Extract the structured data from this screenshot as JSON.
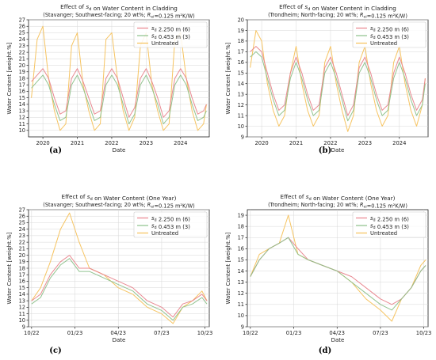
{
  "captions": [
    "(a)",
    "(b)",
    "(c)",
    "(d)"
  ],
  "colors": {
    "sd_2250": "#e8848c",
    "sd_0453": "#8cc08a",
    "untreated": "#f6c15a",
    "grid": "#d7d7d7"
  },
  "chart_data": [
    {
      "id": "a",
      "type": "line",
      "title": "Effect of s_d on Water Content in Cladding",
      "subtitle": "(Stavanger; Southwest-facing; 20 wt%; R_ei=0.125 m²K/W)",
      "xlabel": "Date",
      "ylabel": "Water Content [weight.%]",
      "x_ticks": [
        "2020",
        "2021",
        "2022",
        "2023",
        "2024"
      ],
      "xlim": [
        "2019-08",
        "2024-11"
      ],
      "ylim": [
        9,
        27
      ],
      "y_ticks": [
        10,
        11,
        12,
        13,
        14,
        15,
        16,
        17,
        18,
        19,
        20,
        21,
        22,
        23,
        24,
        25,
        26,
        27
      ],
      "grid": true,
      "legend_position": "top-right",
      "series": [
        {
          "name": "s_d 2.250 m (6)",
          "x": [
            "2019-09",
            "2019-11",
            "2020-01",
            "2020-03",
            "2020-05",
            "2020-07",
            "2020-09",
            "2020-11",
            "2021-01",
            "2021-03",
            "2021-05",
            "2021-07",
            "2021-09",
            "2021-11",
            "2022-01",
            "2022-03",
            "2022-05",
            "2022-07",
            "2022-09",
            "2022-11",
            "2023-01",
            "2023-03",
            "2023-05",
            "2023-07",
            "2023-09",
            "2023-11",
            "2024-01",
            "2024-03",
            "2024-05",
            "2024-07",
            "2024-09",
            "2024-10"
          ],
          "values": [
            17.5,
            18.5,
            19.5,
            18,
            15,
            12.5,
            13,
            18,
            19.5,
            17.5,
            15,
            12.5,
            13,
            18,
            19.5,
            18,
            15,
            12,
            13.5,
            18,
            19.5,
            17.5,
            15,
            12,
            13,
            18,
            19.5,
            18,
            15,
            12.5,
            13,
            14
          ]
        },
        {
          "name": "s_d 0.453 m (3)",
          "x": [
            "2019-09",
            "2019-11",
            "2020-01",
            "2020-03",
            "2020-05",
            "2020-07",
            "2020-09",
            "2020-11",
            "2021-01",
            "2021-03",
            "2021-05",
            "2021-07",
            "2021-09",
            "2021-11",
            "2022-01",
            "2022-03",
            "2022-05",
            "2022-07",
            "2022-09",
            "2022-11",
            "2023-01",
            "2023-03",
            "2023-05",
            "2023-07",
            "2023-09",
            "2023-11",
            "2024-01",
            "2024-03",
            "2024-05",
            "2024-07",
            "2024-09",
            "2024-10"
          ],
          "values": [
            16.5,
            17.5,
            18.5,
            17,
            14,
            11.5,
            12,
            17,
            18.5,
            16.5,
            14,
            11.5,
            12,
            17,
            18.5,
            17,
            14,
            11,
            12.5,
            17,
            18.5,
            16.5,
            14,
            11,
            12,
            17,
            18.5,
            17,
            14,
            11.5,
            12,
            13
          ]
        },
        {
          "name": "Untreated",
          "x": [
            "2019-09",
            "2019-11",
            "2020-01",
            "2020-03",
            "2020-05",
            "2020-07",
            "2020-09",
            "2020-11",
            "2021-01",
            "2021-03",
            "2021-05",
            "2021-07",
            "2021-09",
            "2021-11",
            "2022-01",
            "2022-03",
            "2022-05",
            "2022-07",
            "2022-09",
            "2022-11",
            "2023-01",
            "2023-03",
            "2023-05",
            "2023-07",
            "2023-09",
            "2023-11",
            "2024-01",
            "2024-03",
            "2024-05",
            "2024-07",
            "2024-09",
            "2024-10"
          ],
          "values": [
            15,
            24,
            26,
            18,
            13,
            10,
            11,
            23,
            25,
            17,
            13,
            10,
            11,
            24,
            25,
            18,
            13,
            10,
            12,
            23,
            25,
            17,
            13,
            10,
            11,
            24,
            25,
            18,
            13,
            10,
            11,
            14
          ]
        }
      ]
    },
    {
      "id": "b",
      "type": "line",
      "title": "Effect of s_d on Water Content in Cladding",
      "subtitle": "(Trondheim; North-facing; 20 wt%; R_ei=0.125 m²K/W)",
      "xlabel": "Date",
      "ylabel": "Water Content [weight.%]",
      "x_ticks": [
        "2020",
        "2021",
        "2022",
        "2023",
        "2024"
      ],
      "xlim": [
        "2019-08",
        "2024-11"
      ],
      "ylim": [
        9,
        20
      ],
      "y_ticks": [
        9,
        10,
        11,
        12,
        13,
        14,
        15,
        16,
        17,
        18,
        19,
        20
      ],
      "grid": true,
      "legend_position": "top-right",
      "series": [
        {
          "name": "s_d 2.250 m (6)",
          "x": [
            "2019-09",
            "2019-11",
            "2020-01",
            "2020-03",
            "2020-05",
            "2020-07",
            "2020-09",
            "2020-11",
            "2021-01",
            "2021-03",
            "2021-05",
            "2021-07",
            "2021-09",
            "2021-11",
            "2022-01",
            "2022-03",
            "2022-05",
            "2022-07",
            "2022-09",
            "2022-11",
            "2023-01",
            "2023-03",
            "2023-05",
            "2023-07",
            "2023-09",
            "2023-11",
            "2024-01",
            "2024-03",
            "2024-05",
            "2024-07",
            "2024-09",
            "2024-10"
          ],
          "values": [
            17,
            17.5,
            17,
            15,
            13,
            11.5,
            12,
            15,
            16.5,
            15,
            13,
            11.5,
            12,
            15.5,
            16.5,
            15,
            13,
            11,
            12,
            15.5,
            16.5,
            15,
            13,
            11.5,
            12,
            15,
            16.5,
            15,
            13,
            11.5,
            12.5,
            14.5
          ]
        },
        {
          "name": "s_d 0.453 m (3)",
          "x": [
            "2019-09",
            "2019-11",
            "2020-01",
            "2020-03",
            "2020-05",
            "2020-07",
            "2020-09",
            "2020-11",
            "2021-01",
            "2021-03",
            "2021-05",
            "2021-07",
            "2021-09",
            "2021-11",
            "2022-01",
            "2022-03",
            "2022-05",
            "2022-07",
            "2022-09",
            "2022-11",
            "2023-01",
            "2023-03",
            "2023-05",
            "2023-07",
            "2023-09",
            "2023-11",
            "2024-01",
            "2024-03",
            "2024-05",
            "2024-07",
            "2024-09",
            "2024-10"
          ],
          "values": [
            16.5,
            17,
            16.5,
            14.5,
            12.5,
            11,
            11.5,
            14.5,
            16,
            14.5,
            12.5,
            11,
            11.5,
            15,
            16,
            14.5,
            12.5,
            10.5,
            11.5,
            15,
            16,
            14.5,
            12.5,
            11,
            11.5,
            14.5,
            16,
            14.5,
            12.5,
            11,
            12,
            14
          ]
        },
        {
          "name": "Untreated",
          "x": [
            "2019-09",
            "2019-11",
            "2020-01",
            "2020-03",
            "2020-05",
            "2020-07",
            "2020-09",
            "2020-11",
            "2021-01",
            "2021-03",
            "2021-05",
            "2021-07",
            "2021-09",
            "2021-11",
            "2022-01",
            "2022-03",
            "2022-05",
            "2022-07",
            "2022-09",
            "2022-11",
            "2023-01",
            "2023-03",
            "2023-05",
            "2023-07",
            "2023-09",
            "2023-11",
            "2024-01",
            "2024-03",
            "2024-05",
            "2024-07",
            "2024-09",
            "2024-10"
          ],
          "values": [
            15.5,
            19,
            18,
            14,
            11.5,
            10,
            11,
            15,
            17.5,
            14,
            11.5,
            10,
            11,
            16,
            17.5,
            14,
            11.5,
            9.5,
            11,
            16,
            17.5,
            14,
            11.5,
            10,
            11,
            16,
            17.5,
            14,
            11.5,
            10,
            12,
            14.5
          ]
        }
      ]
    },
    {
      "id": "c",
      "type": "line",
      "title": "Effect of s_d on Water Content (One Year)",
      "subtitle": "(Stavanger; Southwest-facing; 20 wt%; R_ei=0.125 m²K/W)",
      "xlabel": "Date",
      "ylabel": "Water Content [weight.%]",
      "x_ticks": [
        "10/22",
        "01/23",
        "04/23",
        "07/23",
        "10/23"
      ],
      "xlim": [
        "2022-09-25",
        "2023-10-10"
      ],
      "ylim": [
        9,
        27
      ],
      "y_ticks": [
        9,
        10,
        11,
        12,
        13,
        14,
        15,
        16,
        17,
        18,
        19,
        20,
        21,
        22,
        23,
        24,
        25,
        26,
        27
      ],
      "grid": true,
      "legend_position": "top-right",
      "series": [
        {
          "name": "s_d 2.250 m (6)",
          "x": [
            "2022-10-01",
            "2022-10-20",
            "2022-11-10",
            "2022-12-01",
            "2022-12-20",
            "2023-01-10",
            "2023-02-01",
            "2023-03-01",
            "2023-04-01",
            "2023-05-01",
            "2023-06-01",
            "2023-07-01",
            "2023-07-25",
            "2023-08-15",
            "2023-09-05",
            "2023-09-25",
            "2023-10-05"
          ],
          "values": [
            13,
            14,
            17,
            19,
            20,
            18,
            18,
            17,
            16,
            15,
            13,
            12,
            10.5,
            12.5,
            13,
            14,
            13
          ]
        },
        {
          "name": "s_d 0.453 m (3)",
          "x": [
            "2022-10-01",
            "2022-10-20",
            "2022-11-10",
            "2022-12-01",
            "2022-12-20",
            "2023-01-10",
            "2023-02-01",
            "2023-03-01",
            "2023-04-01",
            "2023-05-01",
            "2023-06-01",
            "2023-07-01",
            "2023-07-25",
            "2023-08-15",
            "2023-09-05",
            "2023-09-25",
            "2023-10-05"
          ],
          "values": [
            12.5,
            13.5,
            16.5,
            18.5,
            19.5,
            17.5,
            17.5,
            16.5,
            15.5,
            14.5,
            12.5,
            11.5,
            10,
            12,
            12.5,
            13.5,
            12.5
          ]
        },
        {
          "name": "Untreated",
          "x": [
            "2022-10-01",
            "2022-10-20",
            "2022-11-10",
            "2022-12-01",
            "2022-12-20",
            "2023-01-10",
            "2023-02-01",
            "2023-03-01",
            "2023-04-01",
            "2023-05-01",
            "2023-06-01",
            "2023-07-01",
            "2023-07-25",
            "2023-08-15",
            "2023-09-05",
            "2023-09-25",
            "2023-10-05"
          ],
          "values": [
            13,
            15,
            19,
            24,
            26.5,
            22,
            18,
            17,
            15,
            14,
            12,
            11,
            9.5,
            12,
            13,
            14.5,
            13
          ]
        }
      ]
    },
    {
      "id": "d",
      "type": "line",
      "title": "Effect of s_d on Water Content (One Year)",
      "subtitle": "(Trondheim; North-facing; 20 wt%; R_ei=0.125 m²K/W)",
      "xlabel": "Date",
      "ylabel": "Water Content [weight.%]",
      "x_ticks": [
        "10/22",
        "01/23",
        "04/23",
        "07/23",
        "10/23"
      ],
      "xlim": [
        "2022-09-25",
        "2023-10-10"
      ],
      "ylim": [
        9,
        19.5
      ],
      "y_ticks": [
        9,
        10,
        11,
        12,
        13,
        14,
        15,
        16,
        17,
        18,
        19
      ],
      "grid": true,
      "legend_position": "top-right",
      "series": [
        {
          "name": "s_d 2.250 m (6)",
          "x": [
            "2022-10-01",
            "2022-10-20",
            "2022-11-10",
            "2022-12-01",
            "2022-12-20",
            "2023-01-10",
            "2023-02-01",
            "2023-03-01",
            "2023-04-01",
            "2023-05-01",
            "2023-06-01",
            "2023-07-01",
            "2023-07-25",
            "2023-08-15",
            "2023-09-05",
            "2023-09-25",
            "2023-10-05"
          ],
          "values": [
            13.5,
            15,
            16,
            16.5,
            17,
            16,
            15,
            14.5,
            14,
            13.5,
            12.5,
            11.5,
            11,
            11.5,
            12.5,
            14,
            14.5
          ]
        },
        {
          "name": "s_d 0.453 m (3)",
          "x": [
            "2022-10-01",
            "2022-10-20",
            "2022-11-10",
            "2022-12-01",
            "2022-12-20",
            "2023-01-10",
            "2023-02-01",
            "2023-03-01",
            "2023-04-01",
            "2023-05-01",
            "2023-06-01",
            "2023-07-01",
            "2023-07-25",
            "2023-08-15",
            "2023-09-05",
            "2023-09-25",
            "2023-10-05"
          ],
          "values": [
            13.5,
            15,
            16,
            16.5,
            17,
            15.5,
            15,
            14.5,
            14,
            13,
            12,
            11,
            10.5,
            11.5,
            12.5,
            14,
            14.5
          ]
        },
        {
          "name": "Untreated",
          "x": [
            "2022-10-01",
            "2022-10-20",
            "2022-11-10",
            "2022-12-01",
            "2022-12-20",
            "2023-01-10",
            "2023-02-01",
            "2023-03-01",
            "2023-04-01",
            "2023-05-01",
            "2023-06-01",
            "2023-07-01",
            "2023-07-25",
            "2023-08-15",
            "2023-09-05",
            "2023-09-25",
            "2023-10-05"
          ],
          "values": [
            13.5,
            15.5,
            16,
            16.5,
            19,
            15.5,
            15,
            14.5,
            14,
            13,
            11.5,
            10.5,
            9.5,
            11.5,
            12.5,
            14.5,
            15
          ]
        }
      ]
    }
  ]
}
